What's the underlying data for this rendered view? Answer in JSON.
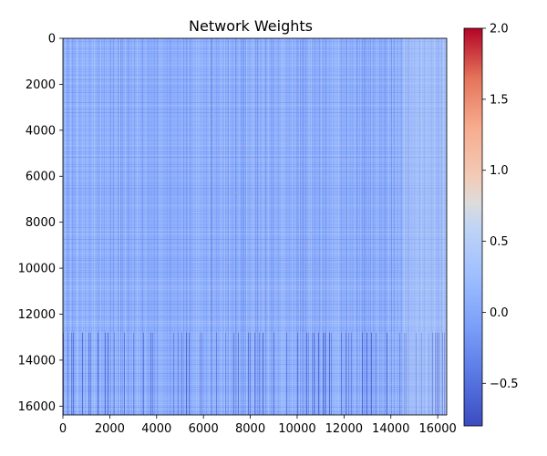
{
  "chart_data": {
    "type": "heatmap",
    "title": "Network Weights",
    "xlabel": "",
    "ylabel": "",
    "xlim": [
      0,
      16384
    ],
    "ylim": [
      16384,
      0
    ],
    "x_ticks": [
      0,
      2000,
      4000,
      6000,
      8000,
      10000,
      12000,
      14000,
      16000
    ],
    "y_ticks": [
      0,
      2000,
      4000,
      6000,
      8000,
      10000,
      12000,
      14000,
      16000
    ],
    "colormap": "coolwarm",
    "colorbar": {
      "range": [
        -0.8,
        2.0
      ],
      "ticks": [
        -0.5,
        0.0,
        0.5,
        1.0,
        1.5,
        2.0
      ],
      "tick_labels": [
        "−0.5",
        "0.0",
        "0.5",
        "1.0",
        "1.5",
        "2.0"
      ]
    },
    "dominant_value": -0.2,
    "grid": false
  }
}
